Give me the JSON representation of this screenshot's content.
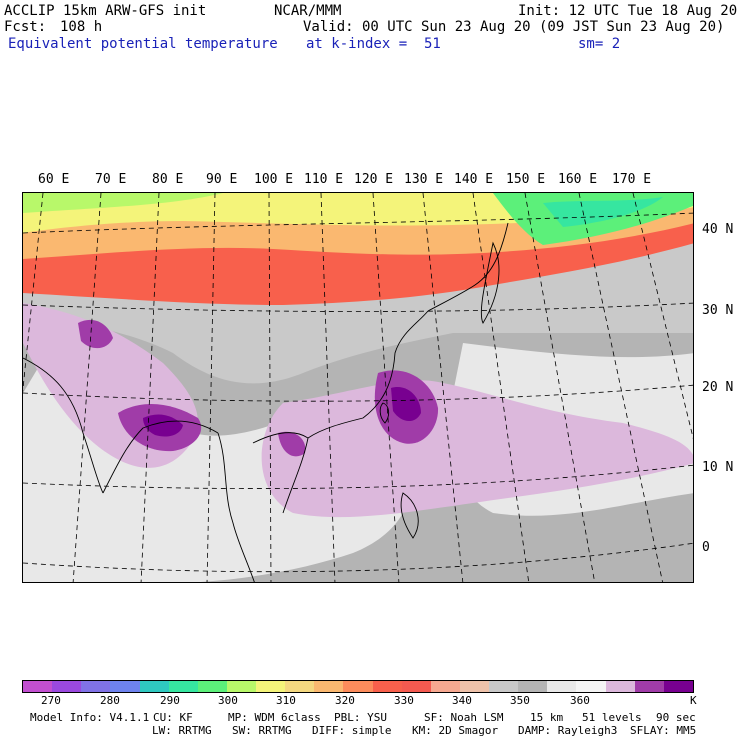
{
  "header": {
    "model": "ACCLIP 15km ARW-GFS init",
    "fcst_label": "Fcst:",
    "fcst_value": "108 h",
    "field": "Equivalent potential temperature",
    "org": "NCAR/MMM",
    "valid": "Valid: 00 UTC Sun 23 Aug 20 (09 JST Sun 23 Aug 20)",
    "level": "at k-index =  51",
    "init": "Init: 12 UTC Tue 18 Aug 20",
    "smooth": "sm= 2"
  },
  "map": {
    "lon_labels": [
      "60 E",
      "70 E",
      "80 E",
      "90 E",
      "100 E",
      "110 E",
      "120 E",
      "130 E",
      "140 E",
      "150 E",
      "160 E",
      "170 E"
    ],
    "lat_labels": [
      "40 N",
      "30 N",
      "20 N",
      "10 N",
      "0"
    ]
  },
  "colorbar": {
    "colors": [
      "#c24fd0",
      "#9a49de",
      "#8072e6",
      "#6e83ee",
      "#2fc8c0",
      "#36e6a0",
      "#5cf07a",
      "#b8f86a",
      "#f4f47a",
      "#f4d880",
      "#fab870",
      "#fc8c5c",
      "#f8604c",
      "#f45a50",
      "#f6a890",
      "#eec2aa",
      "#c8c8c8",
      "#b4b4b4",
      "#e8e8e8",
      "#f4f4f4",
      "#dcb8dc",
      "#a03ca8",
      "#780090"
    ],
    "ticks": [
      "270",
      "280",
      "290",
      "300",
      "310",
      "320",
      "330",
      "340",
      "350",
      "360"
    ],
    "unit": "K"
  },
  "footer": {
    "line1": [
      "Model Info: V4.1.1",
      "CU: KF",
      "MP: WDM 6class",
      "PBL: YSU",
      "SF: Noah LSM",
      "15 km",
      "51 levels",
      "90 sec"
    ],
    "line2": [
      "LW: RRTMG",
      "SW: RRTMG",
      "DIFF: simple",
      "KM: 2D Smagor",
      "DAMP: Rayleigh3",
      "SFLAY: MM5"
    ]
  }
}
